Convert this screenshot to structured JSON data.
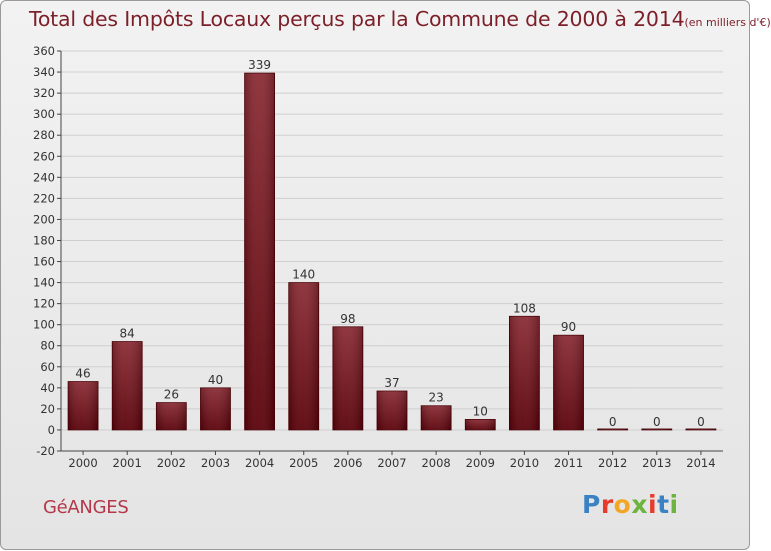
{
  "header": {
    "title": "Total des Impôts Locaux perçus par la Commune de 2000 à 2014",
    "unit": "(en milliers d'€)"
  },
  "commune": "GéANGES",
  "brand": {
    "letters": [
      "P",
      "r",
      "o",
      "x",
      "i",
      "t",
      "i"
    ],
    "colors": [
      "#3b82c4",
      "#e63c2f",
      "#f2a623",
      "#6cb33f",
      "#e63c2f",
      "#3b82c4",
      "#6cb33f"
    ]
  },
  "colors": {
    "bar_top": "#8a2a33",
    "bar_bottom": "#5a0008",
    "title": "#7d1f29",
    "grid": "#cfcfcf"
  },
  "chart_data": {
    "type": "bar",
    "title": "Total des Impôts Locaux perçus par la Commune de 2000 à 2014 (en milliers d'€)",
    "xlabel": "",
    "ylabel": "",
    "categories": [
      "2000",
      "2001",
      "2002",
      "2003",
      "2004",
      "2005",
      "2006",
      "2007",
      "2008",
      "2009",
      "2010",
      "2011",
      "2012",
      "2013",
      "2014"
    ],
    "values": [
      46,
      84,
      26,
      40,
      339,
      140,
      98,
      37,
      23,
      10,
      108,
      90,
      0,
      0,
      0
    ],
    "ylim": [
      -20,
      360
    ],
    "yticks": [
      -20,
      0,
      20,
      40,
      60,
      80,
      100,
      120,
      140,
      160,
      180,
      200,
      220,
      240,
      260,
      280,
      300,
      320,
      340,
      360
    ],
    "grid": true
  }
}
